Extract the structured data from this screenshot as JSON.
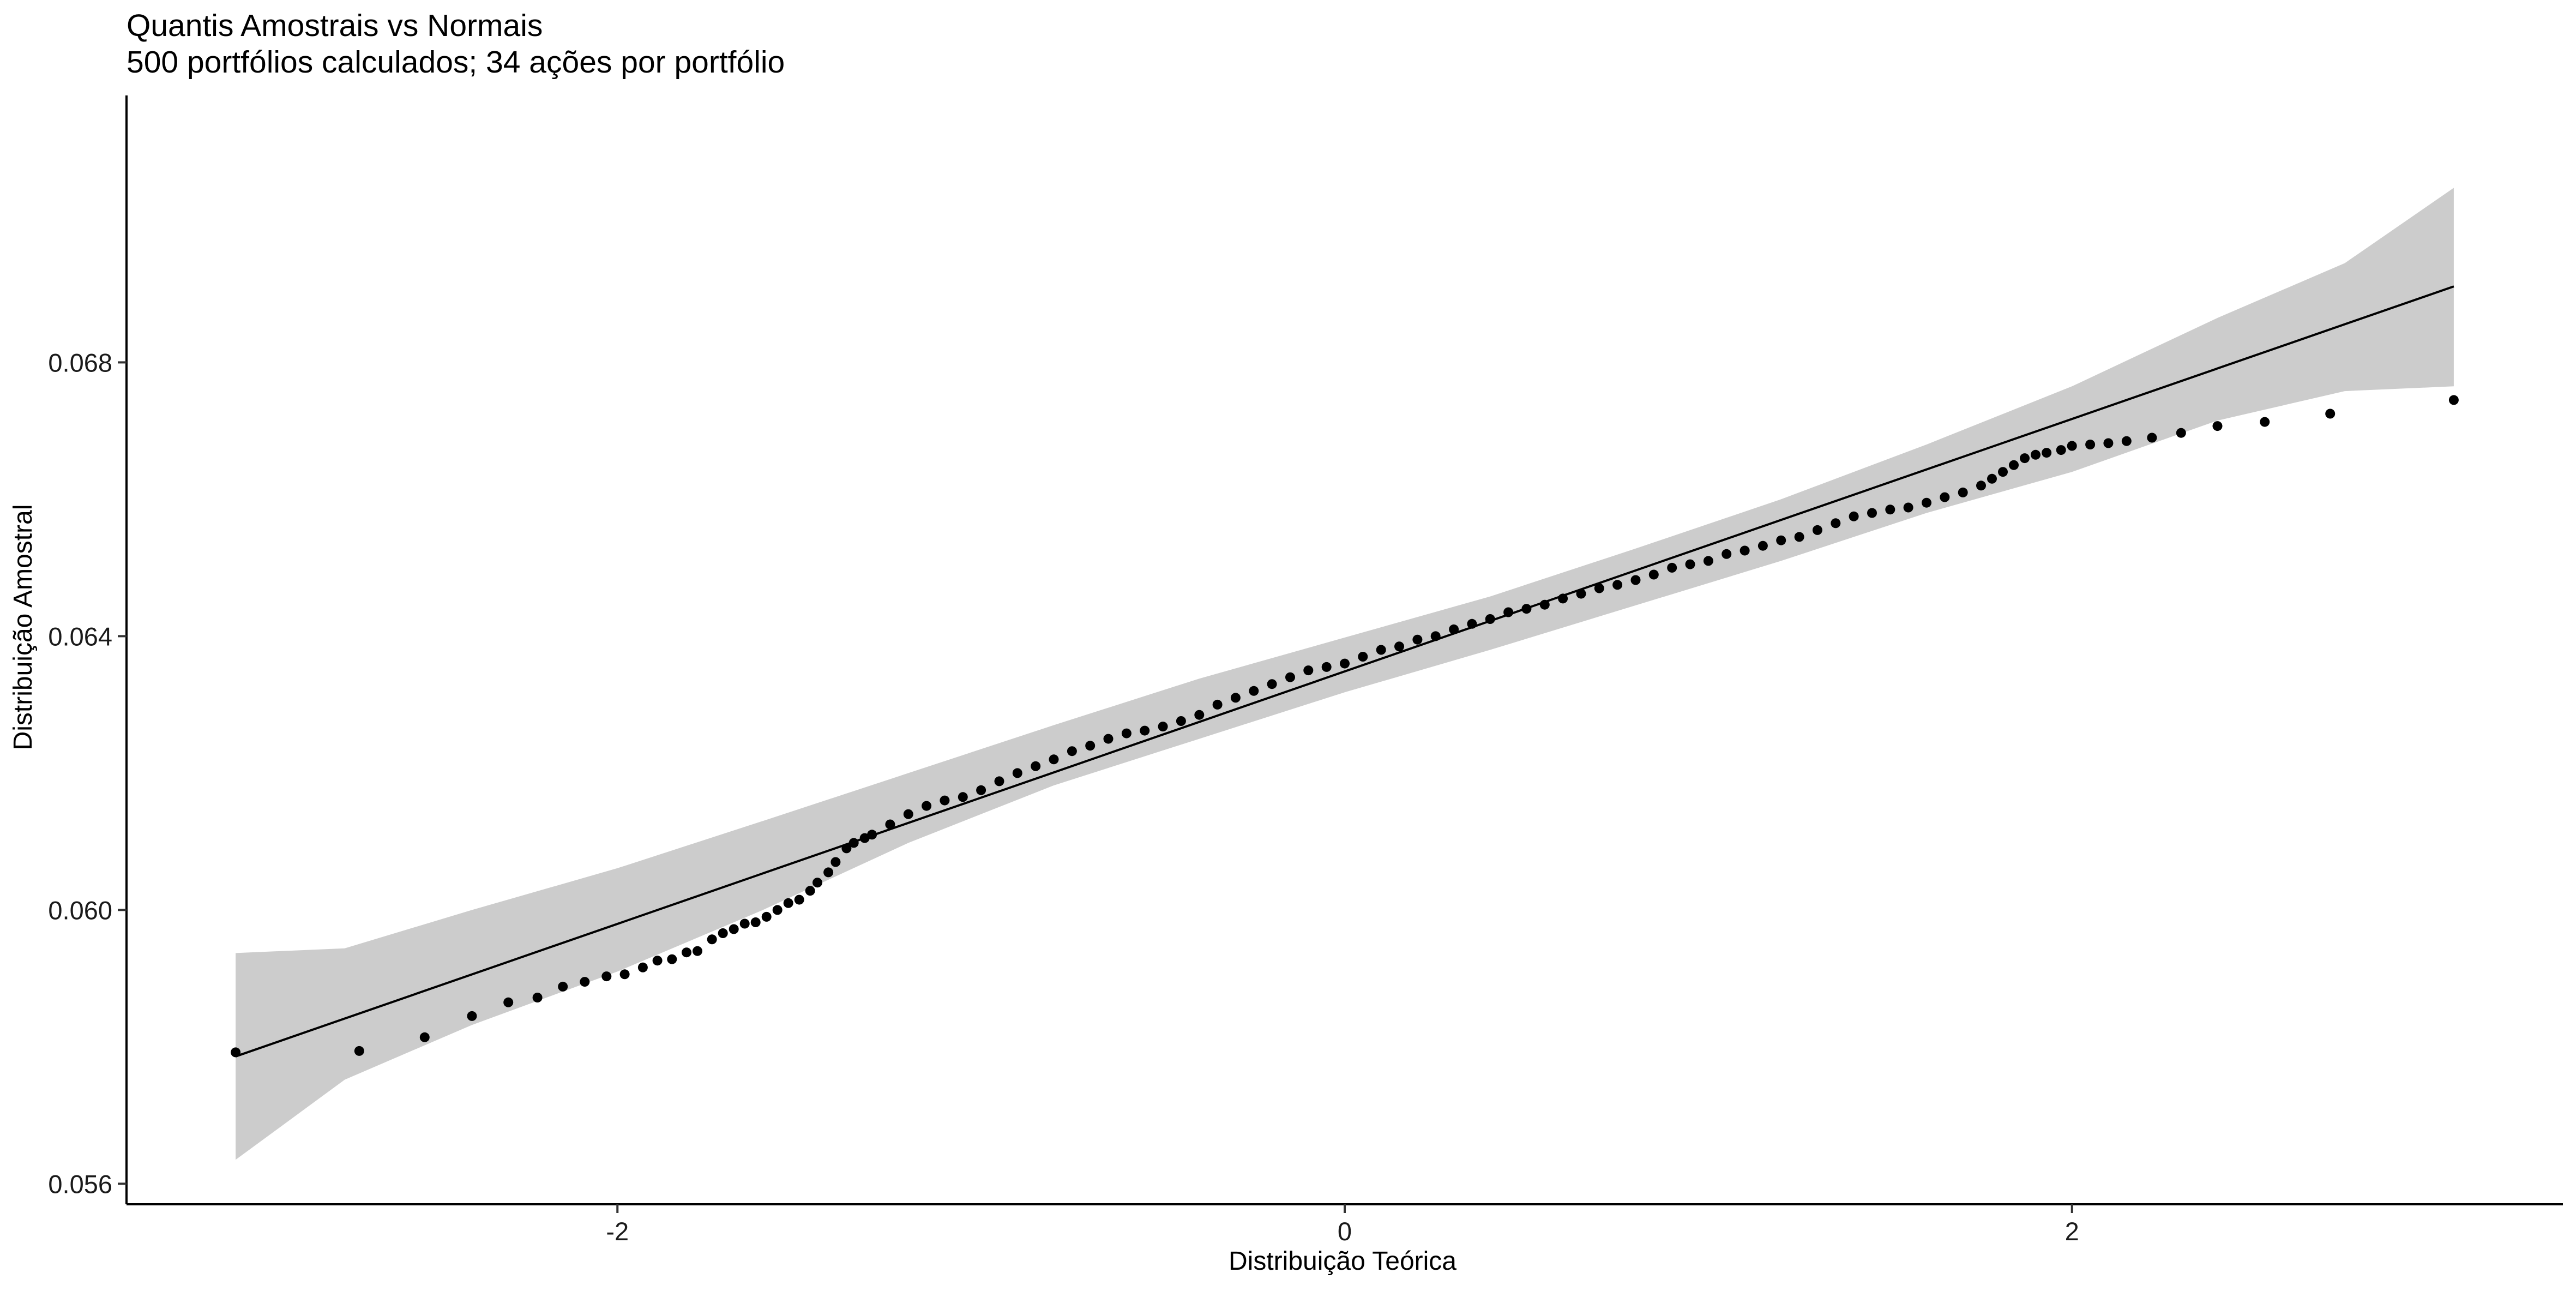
{
  "chart_data": {
    "type": "scatter",
    "title": "Quantis Amostrais vs Normais",
    "subtitle": "500 portfólios calculados; 34 ações por portfólio",
    "xlabel": "Distribuição Teórica",
    "ylabel": "Distribuição Amostral",
    "xlim": [
      -3.35,
      3.35
    ],
    "ylim": [
      0.0557,
      0.0719
    ],
    "x_ticks": [
      -2,
      0,
      2
    ],
    "x_tick_labels": [
      "-2",
      "0",
      "2"
    ],
    "y_ticks": [
      0.056,
      0.06,
      0.064,
      0.068
    ],
    "y_tick_labels": [
      "0.056",
      "0.060",
      "0.064",
      "0.068"
    ],
    "grid": false,
    "reference_line": {
      "x": [
        -3.05,
        3.05
      ],
      "y": [
        0.05786,
        0.06911
      ]
    },
    "confidence_band": {
      "x": [
        -3.05,
        -2.75,
        -2.4,
        -2.0,
        -1.6,
        -1.2,
        -0.8,
        -0.4,
        0.0,
        0.4,
        0.8,
        1.2,
        1.6,
        2.0,
        2.4,
        2.75,
        3.05
      ],
      "upper": [
        0.05937,
        0.05944,
        0.06,
        0.06061,
        0.0613,
        0.062,
        0.0627,
        0.06338,
        0.06398,
        0.06458,
        0.06528,
        0.066,
        0.0668,
        0.06765,
        0.06865,
        0.06945,
        0.07055
      ],
      "lower": [
        0.05635,
        0.05752,
        0.05832,
        0.0591,
        0.06,
        0.06098,
        0.06182,
        0.0625,
        0.06318,
        0.0638,
        0.06445,
        0.0651,
        0.0658,
        0.0664,
        0.06715,
        0.06758,
        0.06765
      ]
    },
    "series": [
      {
        "points": [
          [
            -3.05,
            0.05792
          ],
          [
            -2.71,
            0.05794
          ],
          [
            -2.53,
            0.05814
          ],
          [
            -2.4,
            0.05845
          ],
          [
            -2.3,
            0.05865
          ],
          [
            -2.22,
            0.05872
          ],
          [
            -2.15,
            0.05888
          ],
          [
            -2.09,
            0.05895
          ],
          [
            -2.03,
            0.05903
          ],
          [
            -1.98,
            0.05906
          ],
          [
            -1.93,
            0.05916
          ],
          [
            -1.89,
            0.05926
          ],
          [
            -1.85,
            0.05928
          ],
          [
            -1.81,
            0.05938
          ],
          [
            -1.78,
            0.0594
          ],
          [
            -1.74,
            0.05957
          ],
          [
            -1.71,
            0.05966
          ],
          [
            -1.68,
            0.05972
          ],
          [
            -1.65,
            0.0598
          ],
          [
            -1.62,
            0.05982
          ],
          [
            -1.59,
            0.0599
          ],
          [
            -1.56,
            0.06
          ],
          [
            -1.53,
            0.0601
          ],
          [
            -1.5,
            0.06015
          ],
          [
            -1.47,
            0.06028
          ],
          [
            -1.45,
            0.0604
          ],
          [
            -1.42,
            0.06055
          ],
          [
            -1.4,
            0.0607
          ],
          [
            -1.37,
            0.0609
          ],
          [
            -1.35,
            0.06098
          ],
          [
            -1.32,
            0.06105
          ],
          [
            -1.3,
            0.0611
          ],
          [
            -1.25,
            0.06125
          ],
          [
            -1.2,
            0.0614
          ],
          [
            -1.15,
            0.06152
          ],
          [
            -1.1,
            0.0616
          ],
          [
            -1.05,
            0.06165
          ],
          [
            -1.0,
            0.06175
          ],
          [
            -0.95,
            0.06188
          ],
          [
            -0.9,
            0.062
          ],
          [
            -0.85,
            0.0621
          ],
          [
            -0.8,
            0.0622
          ],
          [
            -0.75,
            0.06232
          ],
          [
            -0.7,
            0.0624
          ],
          [
            -0.65,
            0.0625
          ],
          [
            -0.6,
            0.06258
          ],
          [
            -0.55,
            0.06262
          ],
          [
            -0.5,
            0.06268
          ],
          [
            -0.45,
            0.06276
          ],
          [
            -0.4,
            0.06285
          ],
          [
            -0.35,
            0.063
          ],
          [
            -0.3,
            0.0631
          ],
          [
            -0.25,
            0.0632
          ],
          [
            -0.2,
            0.0633
          ],
          [
            -0.15,
            0.0634
          ],
          [
            -0.1,
            0.0635
          ],
          [
            -0.05,
            0.06355
          ],
          [
            0.0,
            0.0636
          ],
          [
            0.05,
            0.0637
          ],
          [
            0.1,
            0.0638
          ],
          [
            0.15,
            0.06385
          ],
          [
            0.2,
            0.06395
          ],
          [
            0.25,
            0.064
          ],
          [
            0.3,
            0.0641
          ],
          [
            0.35,
            0.06418
          ],
          [
            0.4,
            0.06425
          ],
          [
            0.45,
            0.06435
          ],
          [
            0.5,
            0.0644
          ],
          [
            0.55,
            0.06446
          ],
          [
            0.6,
            0.06455
          ],
          [
            0.65,
            0.06462
          ],
          [
            0.7,
            0.0647
          ],
          [
            0.75,
            0.06475
          ],
          [
            0.8,
            0.06482
          ],
          [
            0.85,
            0.0649
          ],
          [
            0.9,
            0.065
          ],
          [
            0.95,
            0.06505
          ],
          [
            1.0,
            0.0651
          ],
          [
            1.05,
            0.0652
          ],
          [
            1.1,
            0.06525
          ],
          [
            1.15,
            0.06532
          ],
          [
            1.2,
            0.0654
          ],
          [
            1.25,
            0.06545
          ],
          [
            1.3,
            0.06555
          ],
          [
            1.35,
            0.06565
          ],
          [
            1.4,
            0.06575
          ],
          [
            1.45,
            0.0658
          ],
          [
            1.5,
            0.06585
          ],
          [
            1.55,
            0.06588
          ],
          [
            1.6,
            0.06595
          ],
          [
            1.65,
            0.06603
          ],
          [
            1.7,
            0.0661
          ],
          [
            1.75,
            0.0662
          ],
          [
            1.78,
            0.0663
          ],
          [
            1.81,
            0.0664
          ],
          [
            1.84,
            0.0665
          ],
          [
            1.87,
            0.0666
          ],
          [
            1.9,
            0.06665
          ],
          [
            1.93,
            0.06668
          ],
          [
            1.97,
            0.06672
          ],
          [
            2.0,
            0.06678
          ],
          [
            2.05,
            0.0668
          ],
          [
            2.1,
            0.06682
          ],
          [
            2.15,
            0.06685
          ],
          [
            2.22,
            0.0669
          ],
          [
            2.3,
            0.06697
          ],
          [
            2.4,
            0.06707
          ],
          [
            2.53,
            0.06713
          ],
          [
            2.71,
            0.06725
          ],
          [
            3.05,
            0.06745
          ]
        ]
      }
    ]
  }
}
